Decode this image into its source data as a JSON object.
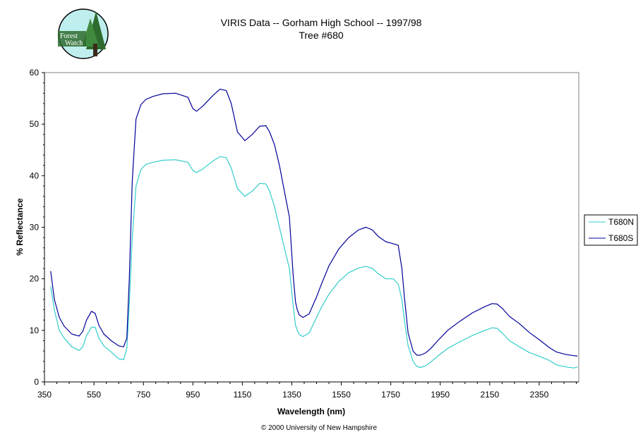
{
  "logo": {
    "line1": "Forest",
    "line2": "Watch"
  },
  "copyright": "© 2000 University of New Hampshire",
  "colors": {
    "T680N": "#33cccc",
    "T680S": "#000099",
    "logo_bg": "#bfeeee",
    "logo_tree": "#2e6b2e"
  },
  "chart_data": {
    "type": "line",
    "title": [
      "VIRIS Data -- Gorham High School -- 1997/98",
      "Tree #680"
    ],
    "xlabel": "Wavelength (nm)",
    "ylabel": "% Reflectance",
    "xlim": [
      350,
      2510
    ],
    "ylim": [
      0,
      60
    ],
    "xticks": [
      350,
      550,
      750,
      950,
      1150,
      1350,
      1550,
      1750,
      1950,
      2150,
      2350
    ],
    "yticks": [
      0,
      10,
      20,
      30,
      40,
      50,
      60
    ],
    "grid": false,
    "legend_position": "right",
    "series": [
      {
        "name": "T680N",
        "color": "#33cccc",
        "x": [
          375,
          390,
          410,
          430,
          460,
          490,
          505,
          520,
          540,
          555,
          570,
          590,
          620,
          650,
          670,
          683,
          693,
          705,
          720,
          740,
          760,
          790,
          830,
          880,
          930,
          950,
          965,
          990,
          1030,
          1060,
          1085,
          1105,
          1130,
          1160,
          1190,
          1220,
          1245,
          1260,
          1280,
          1300,
          1320,
          1340,
          1355,
          1365,
          1372,
          1380,
          1395,
          1420,
          1450,
          1470,
          1500,
          1540,
          1580,
          1620,
          1650,
          1675,
          1700,
          1730,
          1760,
          1780,
          1795,
          1805,
          1820,
          1840,
          1855,
          1870,
          1890,
          1910,
          1940,
          1980,
          2030,
          2080,
          2130,
          2160,
          2180,
          2200,
          2230,
          2270,
          2310,
          2350,
          2390,
          2420,
          2460,
          2490,
          2505
        ],
        "y": [
          18.5,
          14,
          10,
          8.5,
          6.8,
          6.1,
          6.8,
          9,
          10.6,
          10.6,
          8.5,
          7,
          5.8,
          4.5,
          4.3,
          6.5,
          15,
          28,
          38,
          41.2,
          42.2,
          42.6,
          43,
          43.1,
          42.6,
          41,
          40.6,
          41.3,
          42.8,
          43.7,
          43.5,
          41.5,
          37.5,
          36,
          37,
          38.5,
          38.4,
          37,
          34,
          30,
          26,
          22,
          15,
          11,
          10,
          9.2,
          8.8,
          9.5,
          12.5,
          14.5,
          17,
          19.5,
          21.2,
          22.1,
          22.4,
          22,
          21,
          20,
          20,
          19,
          16,
          12,
          7,
          4,
          3,
          2.8,
          3.1,
          3.8,
          5,
          6.5,
          7.8,
          9,
          10,
          10.5,
          10.4,
          9.5,
          8,
          6.8,
          5.7,
          5,
          4.2,
          3.3,
          2.9,
          2.7,
          2.9
        ]
      },
      {
        "name": "T680S",
        "color": "#000099",
        "x": [
          375,
          390,
          410,
          430,
          460,
          490,
          505,
          520,
          540,
          555,
          570,
          590,
          620,
          650,
          670,
          683,
          693,
          705,
          720,
          740,
          760,
          790,
          830,
          880,
          930,
          950,
          965,
          990,
          1030,
          1060,
          1085,
          1105,
          1130,
          1160,
          1190,
          1220,
          1245,
          1260,
          1280,
          1300,
          1320,
          1340,
          1355,
          1365,
          1372,
          1380,
          1395,
          1420,
          1450,
          1470,
          1500,
          1540,
          1580,
          1620,
          1650,
          1675,
          1700,
          1730,
          1760,
          1780,
          1795,
          1805,
          1820,
          1840,
          1855,
          1870,
          1890,
          1910,
          1940,
          1980,
          2030,
          2080,
          2130,
          2160,
          2180,
          2200,
          2230,
          2270,
          2310,
          2350,
          2390,
          2420,
          2460,
          2490,
          2505
        ],
        "y": [
          21.5,
          16,
          12.5,
          10.8,
          9.3,
          8.9,
          9.8,
          12,
          13.7,
          13.3,
          11,
          9.3,
          8,
          7,
          6.8,
          8.5,
          20,
          39,
          51,
          53.8,
          54.8,
          55.4,
          55.9,
          56,
          55.2,
          53,
          52.5,
          53.5,
          55.5,
          56.8,
          56.5,
          54,
          48.5,
          46.8,
          48,
          49.6,
          49.7,
          48.5,
          46,
          42,
          37,
          32,
          21,
          15.5,
          14,
          13,
          12.5,
          13.2,
          16.5,
          19,
          22.5,
          25.8,
          28,
          29.5,
          30,
          29.5,
          28.2,
          27.2,
          26.8,
          26.5,
          22,
          16.5,
          9.5,
          6,
          5.2,
          5.2,
          5.6,
          6.4,
          8,
          10,
          11.8,
          13.4,
          14.6,
          15.2,
          15.1,
          14.3,
          12.7,
          11.3,
          9.6,
          8.2,
          6.7,
          5.8,
          5.3,
          5.1,
          5.0
        ]
      }
    ]
  }
}
